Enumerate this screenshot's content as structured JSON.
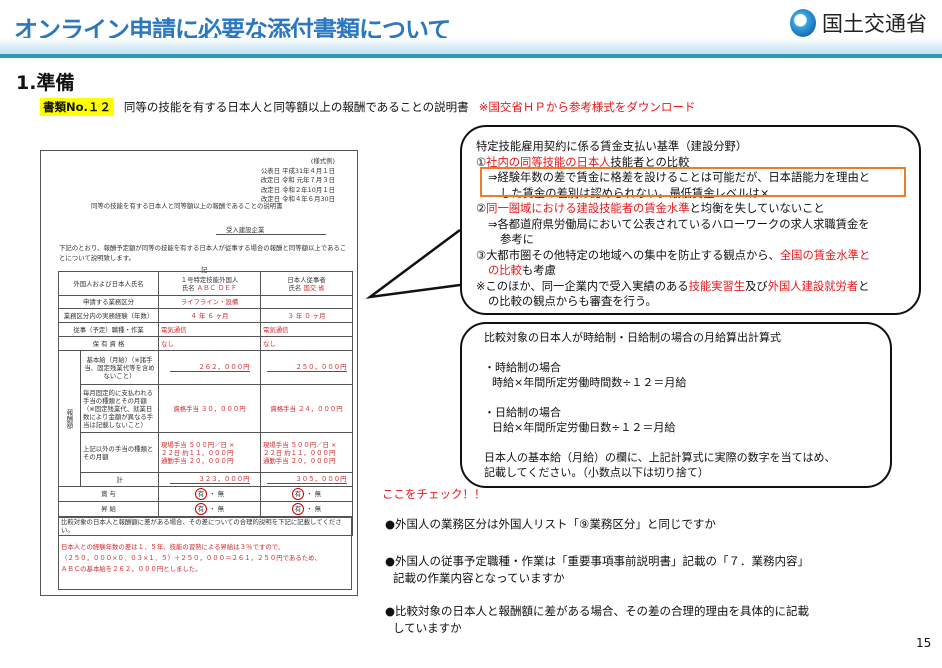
{
  "header": {
    "title": "オンライン申請に必要な添付書類について",
    "org": "国土交通省"
  },
  "section": "1.準備",
  "doc": {
    "badge": "書類No.１２",
    "desc": "同等の技能を有する日本人と同等額以上の報酬であることの説明書",
    "note": "※国交省ＨＰから参考様式をダウンロード"
  },
  "form": {
    "header": [
      "(様式例)",
      "公表日 平成31年４月１日",
      "改定日 令和 元年７月３日",
      "改定日 令和２年10月１日",
      "改定日 令和４年６月30日"
    ],
    "title": "同等の技能を有する日本人と同等額以上の報酬であることの説明書",
    "dept": "受入建設企業",
    "intro": "下記のとおり、報酬予定額が同等の技能を有する日本人が従事する場合の報酬と同等額以上であることについて説明致します。",
    "ki": "記",
    "col_label": "外国人および日本人氏名",
    "col1": "１号特定技能外国人",
    "col2": "日本人従事者",
    "name_label": "氏名",
    "name1": "ＡＢＣ ＤＥＦ",
    "name2": "国交 省",
    "rows": {
      "category": {
        "label": "申請する業務区分",
        "v1": "ライフライン・設備",
        "v2": ""
      },
      "experience": {
        "label": "業務区分内の実務経験（年数）",
        "v1": "４ 年 ６ ヶ月",
        "v2": "３ 年 ０ ヶ月"
      },
      "job": {
        "label": "従事（予定）職種・作業",
        "v1": "電気通信",
        "v2": "電気通信"
      },
      "qual": {
        "label": "保 有 資 格",
        "v1": "なし",
        "v2": "なし"
      }
    },
    "pay_label": "報酬額",
    "basic": {
      "label": "基本給（月給）（※諸手当、固定残業代等を含めないこと）",
      "v1": "２６２，０００円",
      "v2": "２５０，０００円"
    },
    "monthly_allow": {
      "label": "毎月固定的に支払われる手当の種類とその月額（※固定残業代、就業日数により金額が異なる手当は記載しないこと）",
      "v1_kind": "資格",
      "v1": "手当 ３０，０００円",
      "v2_kind": "資格",
      "v2": "手当 ２４，０００円"
    },
    "other_allow": {
      "label": "上記以外の手当の種類とその月額",
      "v1a": "現場手当 ５００円／日 ×",
      "v1b": "２２日 約１１，０００円",
      "v1c": "通勤手当 ２０，０００円",
      "v2a": "現場手当 ５００円／日 ×",
      "v2b": "２２日 約１１，０００円",
      "v2c": "通勤手当 ２０，０００円"
    },
    "total": {
      "label": "計",
      "v1": "３２３，０００円",
      "v2": "３０５，０００円"
    },
    "bonus": {
      "label": "賞 与",
      "yes": "有",
      "sep": "・",
      "no": "無"
    },
    "raise": {
      "label": "昇 給",
      "yes": "有",
      "sep": "・",
      "no": "無"
    },
    "diff_note": "比較対象の日本人と報酬額に差がある場合、その差についての合理的説明を下記に記載してください。",
    "reason": [
      "日本人との経験年数の差は１．５年、技能の習熟による昇給は３％ですので、",
      "（２５０，０００×０．０３×１．５）＋２５０，０００＝２６１，２５０円であるため、",
      "ＡＢＣの基本給を２６２，０００円としました。"
    ]
  },
  "bubble1": {
    "title": "特定技能雇用契約に係る賃金支払い基準（建設分野）",
    "i1_pre": "①",
    "i1_red": "社内の同等技能の日本人",
    "i1_post": "技能者との比較",
    "i1_sub": "⇒経験年数の差で賃金に格差を設けることは可能だが、日本語能力を理由と",
    "i1_sub2": "した賃金の差別は認められない。最低賃金レベルは×",
    "i2_pre": "②",
    "i2_red": "同一圏域における建設技能者の賃金水準",
    "i2_post": "と均衡を失していないこと",
    "i2_sub": "⇒各都道府県労働局において公表されているハローワークの求人求職賃金を",
    "i2_sub2": "参考に",
    "i3_pre": "③大都市圏その他特定の地域への集中を防止する観点から、",
    "i3_red": "全国の賃金水準と",
    "i3_red2": "の比較",
    "i3_post": "も考慮",
    "i4_pre": "※このほか、同一企業内で受入実績のある",
    "i4_red1": "技能実習生",
    "i4_mid": "及び",
    "i4_red2": "外国人建設就労者",
    "i4_post": "と",
    "i4_line2": "の比較の観点からも審査を行う。"
  },
  "bubble2": {
    "title": "比較対象の日本人が時給制・日給制の場合の月給算出計算式",
    "hourly": "・時給制の場合",
    "hourly_f": "時給×年間所定労働時間数÷１２＝月給",
    "daily": "・日給制の場合",
    "daily_f": "日給×年間所定労働日数÷１２＝月給",
    "note1": "日本人の基本給（月給）の欄に、上記計算式に実際の数字を当てはめ、",
    "note2": "記載してください。（小数点以下は切り捨て）"
  },
  "check": {
    "title": "ここをチェック！！",
    "items": [
      [
        "●外国人の業務区分は外国人リスト「⑨業務区分」と同じですか"
      ],
      [
        "●外国人の従事予定職種・作業は「重要事項事前説明書」記載の「７．業務内容」",
        "記載の作業内容となっていますか"
      ],
      [
        "●比較対象の日本人と報酬額に差がある場合、その差の合理的理由を具体的に記載",
        "していますか"
      ]
    ]
  },
  "page_number": "15",
  "colors": {
    "title": "#2b78c0",
    "accent_red": "#e8161b",
    "highlight": "#ffff00",
    "frame": "#ec7b2b"
  }
}
